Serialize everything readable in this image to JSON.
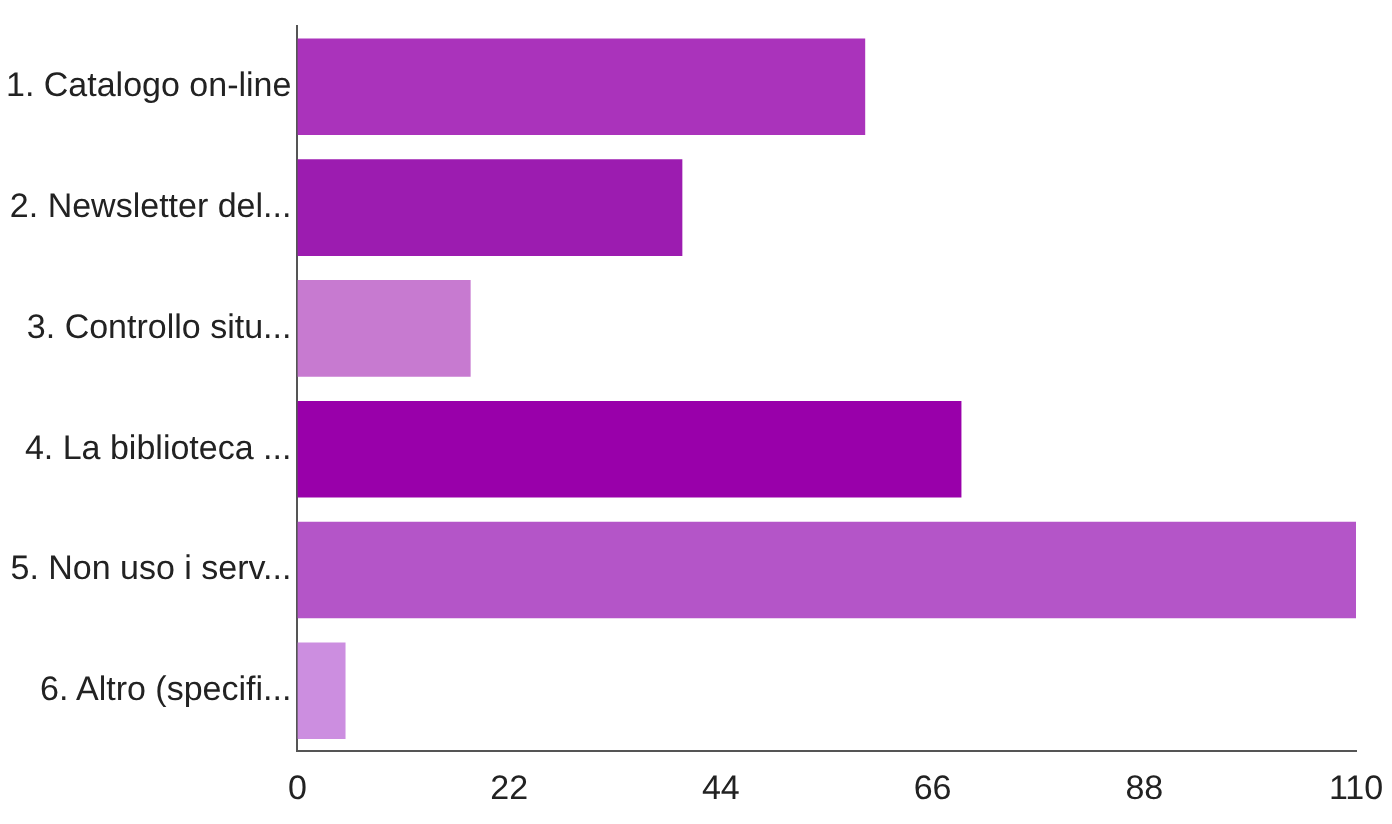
{
  "chart_data": {
    "type": "bar",
    "orientation": "horizontal",
    "categories": [
      "1. Catalogo on-line",
      "2. Newsletter del...",
      "3. Controllo situ...",
      "4. La biblioteca ...",
      "5. Non uso i serv...",
      "6. Altro (specifi..."
    ],
    "values": [
      59,
      40,
      18,
      69,
      110,
      5
    ],
    "colors": [
      "#aa33bb",
      "#9c1cb0",
      "#c77ad0",
      "#9900aa",
      "#b455c8",
      "#cc8ee0"
    ],
    "xlim": [
      0,
      110
    ],
    "xticks": [
      0,
      22,
      44,
      66,
      88,
      110
    ],
    "grid": false,
    "legend": false
  }
}
